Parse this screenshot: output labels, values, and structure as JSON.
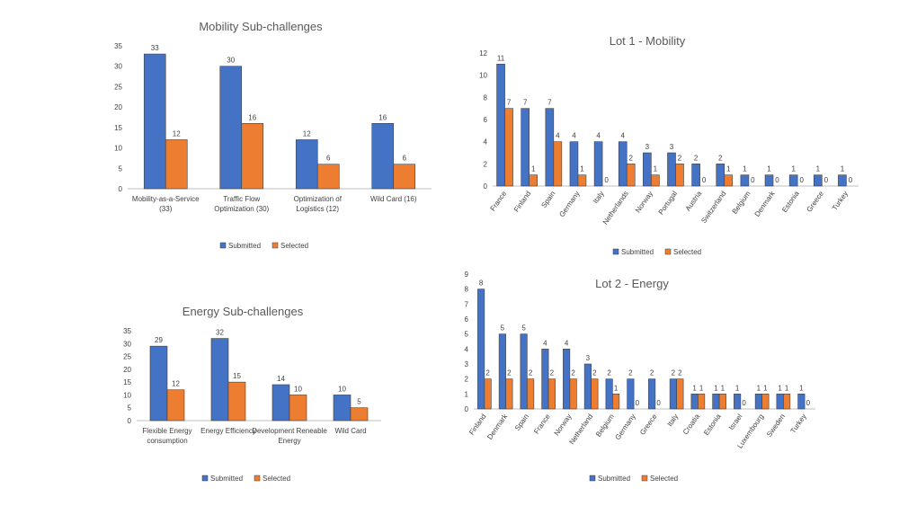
{
  "colors": {
    "submitted": "#4472C4",
    "selected": "#ED7D31",
    "axis": "#bfbfbf"
  },
  "chart_data": [
    {
      "id": "mobility-sub",
      "type": "bar",
      "title": "Mobility Sub-challenges",
      "categories": [
        "Mobility-as-a-Service (33)",
        "Traffic Flow Optimization (30)",
        "Optimization of Logistics (12)",
        "Wild Card (16)"
      ],
      "series": [
        {
          "name": "Submitted",
          "values": [
            33,
            30,
            12,
            16
          ]
        },
        {
          "name": "Selected",
          "values": [
            12,
            16,
            6,
            6
          ]
        }
      ],
      "ylim": [
        0,
        35
      ],
      "yticks": [
        0,
        5,
        10,
        15,
        20,
        25,
        30,
        35
      ],
      "legend": "bottom"
    },
    {
      "id": "lot1-mobility",
      "type": "bar",
      "title": "Lot 1 - Mobility",
      "categories": [
        "France",
        "Finland",
        "Spain",
        "Germany",
        "Italy",
        "Netherlands",
        "Norway",
        "Portugal",
        "Austria",
        "Switzerland",
        "Belgium",
        "Denmark",
        "Estonia",
        "Greece",
        "Turkey"
      ],
      "series": [
        {
          "name": "Submitted",
          "values": [
            11,
            7,
            7,
            4,
            4,
            4,
            3,
            3,
            2,
            2,
            1,
            1,
            1,
            1,
            1
          ]
        },
        {
          "name": "Selected",
          "values": [
            7,
            1,
            4,
            1,
            0,
            2,
            1,
            2,
            0,
            1,
            0,
            0,
            0,
            0,
            0
          ]
        }
      ],
      "ylim": [
        0,
        12
      ],
      "yticks": [
        0,
        2,
        4,
        6,
        8,
        10,
        12
      ],
      "legend": "bottom"
    },
    {
      "id": "energy-sub",
      "type": "bar",
      "title": "Energy Sub-challenges",
      "categories": [
        "Flexible Energy consumption",
        "Energy Efficiency",
        "Development Reneable Energy",
        "Wild Card"
      ],
      "series": [
        {
          "name": "Submitted",
          "values": [
            29,
            32,
            14,
            10
          ]
        },
        {
          "name": "Selected",
          "values": [
            12,
            15,
            10,
            5
          ]
        }
      ],
      "ylim": [
        0,
        35
      ],
      "yticks": [
        0,
        5,
        10,
        15,
        20,
        25,
        30,
        35
      ],
      "legend": "bottom"
    },
    {
      "id": "lot2-energy",
      "type": "bar",
      "title": "Lot 2 - Energy",
      "categories": [
        "Finland",
        "Denmark",
        "Spain",
        "France",
        "Norway",
        "Netherland",
        "Belgium",
        "Germany",
        "Greece",
        "Italy",
        "Croatia",
        "Estonia",
        "Israel",
        "Luxembourg",
        "Sweden",
        "Turkey"
      ],
      "series": [
        {
          "name": "Submitted",
          "values": [
            8,
            5,
            5,
            4,
            4,
            3,
            2,
            2,
            2,
            2,
            1,
            1,
            1,
            1,
            1,
            1
          ]
        },
        {
          "name": "Selected",
          "values": [
            2,
            2,
            2,
            2,
            2,
            2,
            1,
            0,
            0,
            2,
            1,
            1,
            0,
            1,
            1,
            0
          ]
        }
      ],
      "ylim": [
        0,
        9
      ],
      "yticks": [
        0,
        1,
        2,
        3,
        4,
        5,
        6,
        7,
        8,
        9
      ],
      "legend": "bottom"
    }
  ]
}
